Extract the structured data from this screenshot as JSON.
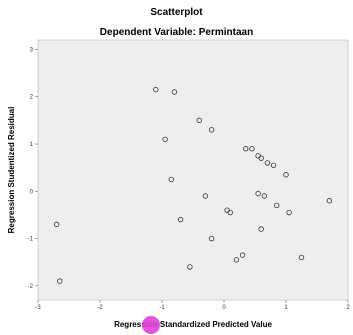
{
  "chart_data": {
    "type": "scatter",
    "title": "Scatterplot",
    "subtitle": "Dependent Variable: Permintaan",
    "xlabel": "Regression Standardized Predicted Value",
    "ylabel": "Regression Studentized Residual",
    "xlim": [
      -3,
      2
    ],
    "ylim": [
      -2.3,
      3.2
    ],
    "xticks": [
      -3,
      -2,
      -1,
      0,
      1,
      2
    ],
    "yticks": [
      -2,
      -1,
      0,
      1,
      2,
      3
    ],
    "xtick_labels": [
      "-3",
      "-2",
      "-1",
      "0",
      "1",
      "2"
    ],
    "ytick_labels": [
      "-2",
      "-1",
      "0",
      "1",
      "2",
      "3"
    ],
    "grid": false,
    "background": "#eeeeee",
    "marker": "open-circle",
    "points": [
      {
        "x": -2.7,
        "y": -0.7
      },
      {
        "x": -2.65,
        "y": -1.9
      },
      {
        "x": -1.1,
        "y": 2.15
      },
      {
        "x": -0.8,
        "y": 2.1
      },
      {
        "x": -0.95,
        "y": 1.1
      },
      {
        "x": -0.85,
        "y": 0.25
      },
      {
        "x": -0.7,
        "y": -0.6
      },
      {
        "x": -0.55,
        "y": -1.6
      },
      {
        "x": -0.4,
        "y": 1.5
      },
      {
        "x": -0.2,
        "y": 1.3
      },
      {
        "x": -0.3,
        "y": -0.1
      },
      {
        "x": -0.2,
        "y": -1.0
      },
      {
        "x": 0.05,
        "y": -0.4
      },
      {
        "x": 0.1,
        "y": -0.45
      },
      {
        "x": 0.2,
        "y": -1.45
      },
      {
        "x": 0.3,
        "y": -1.35
      },
      {
        "x": 0.35,
        "y": 0.9
      },
      {
        "x": 0.45,
        "y": 0.9
      },
      {
        "x": 0.55,
        "y": 0.75
      },
      {
        "x": 0.6,
        "y": 0.7
      },
      {
        "x": 0.7,
        "y": 0.6
      },
      {
        "x": 0.8,
        "y": 0.55
      },
      {
        "x": 0.55,
        "y": -0.05
      },
      {
        "x": 0.65,
        "y": -0.1
      },
      {
        "x": 0.6,
        "y": -0.8
      },
      {
        "x": 0.85,
        "y": -0.3
      },
      {
        "x": 1.0,
        "y": 0.35
      },
      {
        "x": 1.05,
        "y": -0.45
      },
      {
        "x": 1.25,
        "y": -1.4
      },
      {
        "x": 1.7,
        "y": -0.2
      }
    ]
  },
  "colors": {
    "plot_background": "#eeeeee",
    "marker_stroke": "#333333",
    "highlight": "#e23fd9"
  }
}
